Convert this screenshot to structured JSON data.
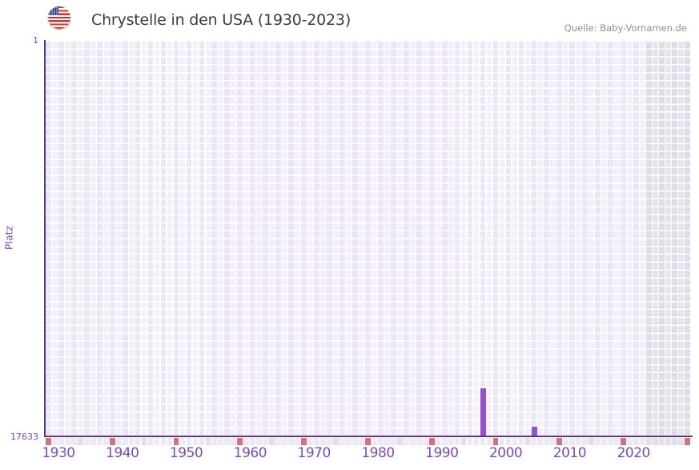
{
  "header": {
    "title": "Chrystelle in den USA (1930-2023)",
    "source": "Quelle: Baby-Vornamen.de",
    "flag_icon": "us-flag-icon"
  },
  "chart_data": {
    "type": "bar",
    "title": "Chrystelle in den USA (1930-2023)",
    "xlabel": "",
    "ylabel": "Platz",
    "y_axis": {
      "top_label": "1",
      "bottom_label": "17633",
      "min": 1,
      "max": 17633,
      "inverted": true
    },
    "x_axis": {
      "start_year": 1930,
      "end_year": 2030,
      "data_end_year": 2023,
      "tick_years": [
        1930,
        1940,
        1950,
        1960,
        1970,
        1980,
        1990,
        2000,
        2010,
        2020
      ]
    },
    "bars": [
      {
        "year": 1998,
        "rank": 15500
      },
      {
        "year": 2006,
        "rank": 17200
      }
    ],
    "axis_markers": {
      "decade_years": [
        1930,
        1940,
        1950,
        1960,
        1970,
        1980,
        1990,
        2000,
        2010,
        2020,
        2030
      ],
      "mid_decade_years": [
        1935,
        1945,
        1955,
        1965,
        1975,
        1985,
        1995,
        2005,
        2015,
        2025
      ]
    },
    "layout_hints": {
      "grid": true,
      "legend": false,
      "no_data_region": "2024-2030 shaded gray"
    },
    "colors": {
      "bar": "#8f55c8",
      "axis": "#563795",
      "tick_label": "#7b4ab8",
      "title_text": "#3c3c3c",
      "source_text": "#8f8f8f",
      "grid_col_a": "#ebe5f7",
      "grid_col_b": "#f3f0fb",
      "grid_future_a": "#dfdbe8",
      "grid_future_b": "#e7e4ee",
      "strip_default": "#ece8f6",
      "strip_future": "#e3dfeb",
      "marker_decade": "#e06c77",
      "marker_mid_decade": "#f3d8df"
    }
  }
}
